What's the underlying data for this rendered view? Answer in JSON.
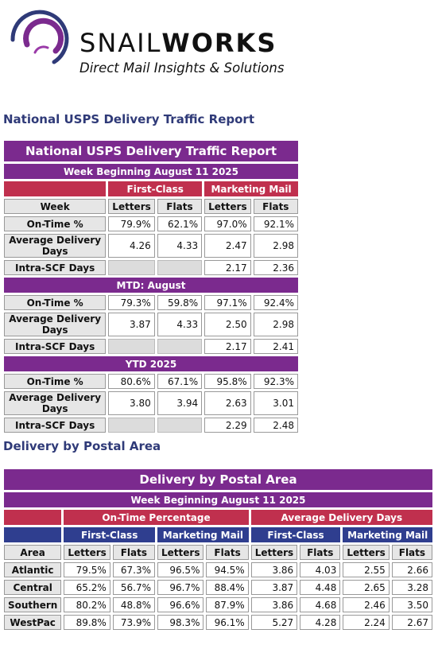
{
  "brand": {
    "name_light": "SNAIL",
    "name_bold": "WORKS",
    "tagline": "Direct Mail Insights & Solutions",
    "colors": {
      "purple": "#7b2a8e",
      "red": "#c0304e",
      "navy": "#2f3e8f"
    }
  },
  "sections": {
    "national_title": "National USPS Delivery Traffic Report",
    "postal_title": "Delivery by Postal Area"
  },
  "national": {
    "title": "National USPS Delivery Traffic Report",
    "week": "Week Beginning August 11 2025",
    "groups": [
      "First-Class",
      "Marketing Mail"
    ],
    "col_header": "Week",
    "cols": [
      "Letters",
      "Flats",
      "Letters",
      "Flats"
    ],
    "blocks": [
      {
        "heading": "",
        "rows": [
          {
            "label": "On-Time %",
            "values": [
              "79.9%",
              "62.1%",
              "97.0%",
              "92.1%"
            ]
          },
          {
            "label": "Average Delivery Days",
            "values": [
              "4.26",
              "4.33",
              "2.47",
              "2.98"
            ]
          },
          {
            "label": "Intra-SCF Days",
            "values": [
              "",
              "",
              "2.17",
              "2.36"
            ]
          }
        ]
      },
      {
        "heading": "MTD: August",
        "rows": [
          {
            "label": "On-Time %",
            "values": [
              "79.3%",
              "59.8%",
              "97.1%",
              "92.4%"
            ]
          },
          {
            "label": "Average Delivery Days",
            "values": [
              "3.87",
              "4.33",
              "2.50",
              "2.98"
            ]
          },
          {
            "label": "Intra-SCF Days",
            "values": [
              "",
              "",
              "2.17",
              "2.41"
            ]
          }
        ]
      },
      {
        "heading": "YTD 2025",
        "rows": [
          {
            "label": "On-Time %",
            "values": [
              "80.6%",
              "67.1%",
              "95.8%",
              "92.3%"
            ]
          },
          {
            "label": "Average Delivery Days",
            "values": [
              "3.80",
              "3.94",
              "2.63",
              "3.01"
            ]
          },
          {
            "label": "Intra-SCF Days",
            "values": [
              "",
              "",
              "2.29",
              "2.48"
            ]
          }
        ]
      }
    ]
  },
  "postal": {
    "title": "Delivery by Postal Area",
    "week": "Week Beginning August 11 2025",
    "metric_groups": [
      "On-Time Percentage",
      "Average Delivery Days"
    ],
    "class_groups": [
      "First-Class",
      "Marketing Mail",
      "First-Class",
      "Marketing Mail"
    ],
    "area_header": "Area",
    "cols": [
      "Letters",
      "Flats",
      "Letters",
      "Flats",
      "Letters",
      "Flats",
      "Letters",
      "Flats"
    ],
    "rows": [
      {
        "area": "Atlantic",
        "values": [
          "79.5%",
          "67.3%",
          "96.5%",
          "94.5%",
          "3.86",
          "4.03",
          "2.55",
          "2.66"
        ]
      },
      {
        "area": "Central",
        "values": [
          "65.2%",
          "56.7%",
          "96.7%",
          "88.4%",
          "3.87",
          "4.48",
          "2.65",
          "3.28"
        ]
      },
      {
        "area": "Southern",
        "values": [
          "80.2%",
          "48.8%",
          "96.6%",
          "87.9%",
          "3.86",
          "4.68",
          "2.46",
          "3.50"
        ]
      },
      {
        "area": "WestPac",
        "values": [
          "89.8%",
          "73.9%",
          "98.3%",
          "96.1%",
          "5.27",
          "4.28",
          "2.24",
          "2.67"
        ]
      }
    ]
  }
}
